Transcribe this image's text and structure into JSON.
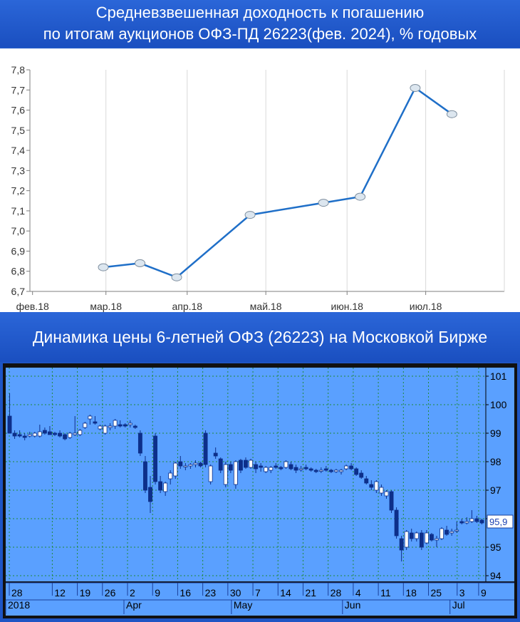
{
  "header_top": {
    "line1": "Средневзвешенная доходность к погашению",
    "line2": "по итогам аукционов ОФЗ-ПД 26223(фев. 2024), % годовых"
  },
  "header_bottom": {
    "line1": "Динамика цены 6-летней ОФЗ (26223) на Московкой Бирже"
  },
  "colors": {
    "line": "#1f6fc8",
    "marker_fill": "#dce6ef",
    "panel_bg": "#1e55c4",
    "candle_panel": "#5aa0ff",
    "candle_up": "#ffffff",
    "candle_down": "#0d2f8a",
    "grid": "#1f8a3a"
  },
  "chart_data": [
    {
      "type": "line",
      "title": "Средневзвешенная доходность к погашению по итогам аукционов ОФЗ-ПД 26223(фев. 2024), % годовых",
      "x_ticks": [
        "фев.18",
        "мар.18",
        "апр.18",
        "май.18",
        "июн.18",
        "июл.18"
      ],
      "y_ticks": [
        "6,7",
        "6,8",
        "6,9",
        "7,0",
        "7,1",
        "7,2",
        "7,3",
        "7,4",
        "7,5",
        "7,6",
        "7,7",
        "7,8"
      ],
      "ylim": [
        6.7,
        7.8
      ],
      "xlim": [
        "2018-01-31",
        "2018-07-31"
      ],
      "grid": "vertical",
      "series": [
        {
          "points": [
            {
              "x": "2018-02-28",
              "y": 6.82
            },
            {
              "x": "2018-03-14",
              "y": 6.84
            },
            {
              "x": "2018-03-28",
              "y": 6.77
            },
            {
              "x": "2018-04-25",
              "y": 7.08
            },
            {
              "x": "2018-05-23",
              "y": 7.14
            },
            {
              "x": "2018-06-06",
              "y": 7.17
            },
            {
              "x": "2018-06-27",
              "y": 7.71
            },
            {
              "x": "2018-07-11",
              "y": 7.58
            }
          ]
        }
      ]
    },
    {
      "type": "candlestick",
      "x_tick_labels": [
        "28",
        "12",
        "19",
        "26",
        "2",
        "9",
        "16",
        "23",
        "30",
        "7",
        "14",
        "21",
        "28",
        "4",
        "11",
        "18",
        "25",
        "3",
        "9"
      ],
      "x_tick_dates": [
        "2018-02-28",
        "2018-03-12",
        "2018-03-19",
        "2018-03-26",
        "2018-04-02",
        "2018-04-09",
        "2018-04-16",
        "2018-04-23",
        "2018-04-30",
        "2018-05-07",
        "2018-05-14",
        "2018-05-21",
        "2018-05-28",
        "2018-06-04",
        "2018-06-11",
        "2018-06-18",
        "2018-06-25",
        "2018-07-03",
        "2018-07-09"
      ],
      "month_labels": [
        {
          "label": "2018",
          "date": "2018-02-27"
        },
        {
          "label": "Apr",
          "date": "2018-04-01"
        },
        {
          "label": "May",
          "date": "2018-05-01"
        },
        {
          "label": "Jun",
          "date": "2018-06-01"
        },
        {
          "label": "Jul",
          "date": "2018-07-01"
        }
      ],
      "y_ticks": [
        "94",
        "95",
        "96",
        "97",
        "98",
        "99",
        "100",
        "101"
      ],
      "ylim": [
        93.8,
        101.3
      ],
      "last_price_label": "95,9",
      "candles": [
        {
          "o": 99.6,
          "h": 100.4,
          "l": 99.0,
          "c": 99.0
        },
        {
          "o": 99.0,
          "h": 99.1,
          "l": 98.8,
          "c": 98.9
        },
        {
          "o": 98.95,
          "h": 99.1,
          "l": 98.85,
          "c": 98.9
        },
        {
          "o": 98.9,
          "h": 99.0,
          "l": 98.75,
          "c": 98.85
        },
        {
          "o": 98.9,
          "h": 99.05,
          "l": 98.85,
          "c": 98.95
        },
        {
          "o": 98.9,
          "h": 99.05,
          "l": 98.85,
          "c": 99.0
        },
        {
          "o": 98.9,
          "h": 99.3,
          "l": 98.85,
          "c": 99.05
        },
        {
          "o": 99.1,
          "h": 99.2,
          "l": 98.95,
          "c": 99.0
        },
        {
          "o": 99.05,
          "h": 99.25,
          "l": 98.95,
          "c": 98.95
        },
        {
          "o": 99.0,
          "h": 99.05,
          "l": 98.9,
          "c": 98.95
        },
        {
          "o": 99.0,
          "h": 99.1,
          "l": 98.85,
          "c": 98.9
        },
        {
          "o": 98.95,
          "h": 99.0,
          "l": 98.75,
          "c": 98.8
        },
        {
          "o": 98.85,
          "h": 99.05,
          "l": 98.8,
          "c": 99.0
        },
        {
          "o": 98.95,
          "h": 99.6,
          "l": 98.9,
          "c": 99.0
        },
        {
          "o": 98.95,
          "h": 99.15,
          "l": 98.9,
          "c": 99.1
        },
        {
          "o": 99.2,
          "h": 99.4,
          "l": 99.15,
          "c": 99.35
        },
        {
          "o": 99.5,
          "h": 99.65,
          "l": 99.3,
          "c": 99.6
        },
        {
          "o": 99.4,
          "h": 99.6,
          "l": 99.3,
          "c": 99.35
        },
        {
          "o": 99.15,
          "h": 99.3,
          "l": 99.1,
          "c": 99.25
        },
        {
          "o": 99.0,
          "h": 99.3,
          "l": 98.95,
          "c": 99.25
        },
        {
          "o": 99.2,
          "h": 99.35,
          "l": 99.1,
          "c": 99.25
        },
        {
          "o": 99.25,
          "h": 99.5,
          "l": 99.15,
          "c": 99.45
        },
        {
          "o": 99.3,
          "h": 99.45,
          "l": 99.2,
          "c": 99.25
        },
        {
          "o": 99.3,
          "h": 99.35,
          "l": 99.2,
          "c": 99.25
        },
        {
          "o": 99.3,
          "h": 99.45,
          "l": 99.2,
          "c": 99.35
        },
        {
          "o": 99.25,
          "h": 99.3,
          "l": 99.15,
          "c": 99.2
        },
        {
          "o": 99.0,
          "h": 99.1,
          "l": 98.2,
          "c": 98.3
        },
        {
          "o": 98.0,
          "h": 98.2,
          "l": 96.9,
          "c": 97.0
        },
        {
          "o": 97.1,
          "h": 97.5,
          "l": 96.2,
          "c": 96.6
        },
        {
          "o": 98.9,
          "h": 99.0,
          "l": 97.2,
          "c": 97.3
        },
        {
          "o": 97.3,
          "h": 97.5,
          "l": 96.9,
          "c": 97.0
        },
        {
          "o": 96.95,
          "h": 97.3,
          "l": 96.8,
          "c": 97.25
        },
        {
          "o": 97.4,
          "h": 97.7,
          "l": 97.2,
          "c": 97.6
        },
        {
          "o": 97.5,
          "h": 98.0,
          "l": 97.4,
          "c": 97.95
        },
        {
          "o": 98.0,
          "h": 98.2,
          "l": 97.75,
          "c": 97.85
        },
        {
          "o": 97.85,
          "h": 97.95,
          "l": 97.7,
          "c": 97.85
        },
        {
          "o": 97.85,
          "h": 97.95,
          "l": 97.75,
          "c": 97.9
        },
        {
          "o": 97.9,
          "h": 98.05,
          "l": 97.8,
          "c": 97.95
        },
        {
          "o": 97.95,
          "h": 98.0,
          "l": 97.8,
          "c": 97.85
        },
        {
          "o": 99.0,
          "h": 99.1,
          "l": 97.8,
          "c": 97.9
        },
        {
          "o": 97.3,
          "h": 97.9,
          "l": 97.2,
          "c": 97.85
        },
        {
          "o": 98.3,
          "h": 98.5,
          "l": 98.1,
          "c": 98.2
        },
        {
          "o": 98.1,
          "h": 98.15,
          "l": 97.6,
          "c": 97.7
        },
        {
          "o": 97.2,
          "h": 98.0,
          "l": 97.1,
          "c": 97.9
        },
        {
          "o": 97.9,
          "h": 98.0,
          "l": 97.6,
          "c": 97.7
        },
        {
          "o": 97.2,
          "h": 98.05,
          "l": 97.05,
          "c": 98.0
        },
        {
          "o": 98.05,
          "h": 98.1,
          "l": 97.6,
          "c": 97.7
        },
        {
          "o": 98.05,
          "h": 98.15,
          "l": 97.75,
          "c": 97.8
        },
        {
          "o": 97.8,
          "h": 98.1,
          "l": 97.75,
          "c": 98.05
        },
        {
          "o": 97.9,
          "h": 98.0,
          "l": 97.6,
          "c": 97.75
        },
        {
          "o": 97.85,
          "h": 97.95,
          "l": 97.65,
          "c": 97.8
        },
        {
          "o": 97.65,
          "h": 97.85,
          "l": 97.6,
          "c": 97.8
        },
        {
          "o": 97.7,
          "h": 97.85,
          "l": 97.6,
          "c": 97.8
        },
        {
          "o": 97.85,
          "h": 97.95,
          "l": 97.75,
          "c": 97.8
        },
        {
          "o": 97.8,
          "h": 97.85,
          "l": 97.7,
          "c": 97.75
        },
        {
          "o": 97.8,
          "h": 98.05,
          "l": 97.75,
          "c": 98.0
        },
        {
          "o": 97.9,
          "h": 98.0,
          "l": 97.7,
          "c": 97.75
        },
        {
          "o": 97.8,
          "h": 97.9,
          "l": 97.6,
          "c": 97.7
        },
        {
          "o": 97.75,
          "h": 97.85,
          "l": 97.65,
          "c": 97.75
        },
        {
          "o": 97.8,
          "h": 97.9,
          "l": 97.7,
          "c": 97.75
        },
        {
          "o": 97.75,
          "h": 97.8,
          "l": 97.65,
          "c": 97.7
        },
        {
          "o": 97.7,
          "h": 97.75,
          "l": 97.6,
          "c": 97.65
        },
        {
          "o": 97.7,
          "h": 97.8,
          "l": 97.6,
          "c": 97.7
        },
        {
          "o": 97.75,
          "h": 97.85,
          "l": 97.65,
          "c": 97.7
        },
        {
          "o": 97.7,
          "h": 97.75,
          "l": 97.6,
          "c": 97.65
        },
        {
          "o": 97.65,
          "h": 97.75,
          "l": 97.6,
          "c": 97.7
        },
        {
          "o": 97.65,
          "h": 97.75,
          "l": 97.55,
          "c": 97.7
        },
        {
          "o": 97.75,
          "h": 97.9,
          "l": 97.7,
          "c": 97.85
        },
        {
          "o": 97.85,
          "h": 97.95,
          "l": 97.7,
          "c": 97.75
        },
        {
          "o": 97.75,
          "h": 97.8,
          "l": 97.5,
          "c": 97.55
        },
        {
          "o": 97.6,
          "h": 97.7,
          "l": 97.4,
          "c": 97.45
        },
        {
          "o": 97.4,
          "h": 97.5,
          "l": 97.2,
          "c": 97.25
        },
        {
          "o": 97.2,
          "h": 97.35,
          "l": 97.0,
          "c": 97.1
        },
        {
          "o": 97.0,
          "h": 97.35,
          "l": 96.9,
          "c": 97.3
        },
        {
          "o": 96.9,
          "h": 97.2,
          "l": 96.8,
          "c": 97.1
        },
        {
          "o": 96.8,
          "h": 97.0,
          "l": 96.7,
          "c": 96.95
        },
        {
          "o": 96.95,
          "h": 97.0,
          "l": 96.2,
          "c": 96.3
        },
        {
          "o": 96.3,
          "h": 96.4,
          "l": 95.3,
          "c": 95.4
        },
        {
          "o": 95.3,
          "h": 95.4,
          "l": 94.5,
          "c": 94.9
        },
        {
          "o": 95.0,
          "h": 95.6,
          "l": 94.9,
          "c": 95.55
        },
        {
          "o": 95.5,
          "h": 95.65,
          "l": 95.2,
          "c": 95.3
        },
        {
          "o": 95.3,
          "h": 95.55,
          "l": 95.2,
          "c": 95.5
        },
        {
          "o": 95.5,
          "h": 95.6,
          "l": 94.9,
          "c": 95.0
        },
        {
          "o": 95.15,
          "h": 95.6,
          "l": 95.1,
          "c": 95.5
        },
        {
          "o": 95.45,
          "h": 95.5,
          "l": 95.2,
          "c": 95.25
        },
        {
          "o": 95.25,
          "h": 95.4,
          "l": 95.0,
          "c": 95.3
        },
        {
          "o": 95.3,
          "h": 95.7,
          "l": 95.25,
          "c": 95.65
        },
        {
          "o": 95.6,
          "h": 95.75,
          "l": 95.4,
          "c": 95.45
        },
        {
          "o": 95.5,
          "h": 95.65,
          "l": 95.4,
          "c": 95.55
        },
        {
          "o": 95.6,
          "h": 95.9,
          "l": 95.5,
          "c": 95.6
        },
        {
          "o": 95.9,
          "h": 96.0,
          "l": 95.8,
          "c": 95.85
        },
        {
          "o": 95.85,
          "h": 96.05,
          "l": 95.8,
          "c": 95.9
        },
        {
          "o": 95.9,
          "h": 96.3,
          "l": 95.85,
          "c": 96.0
        },
        {
          "o": 96.0,
          "h": 96.1,
          "l": 95.85,
          "c": 95.9
        },
        {
          "o": 95.95,
          "h": 96.0,
          "l": 95.8,
          "c": 95.85
        }
      ]
    }
  ]
}
